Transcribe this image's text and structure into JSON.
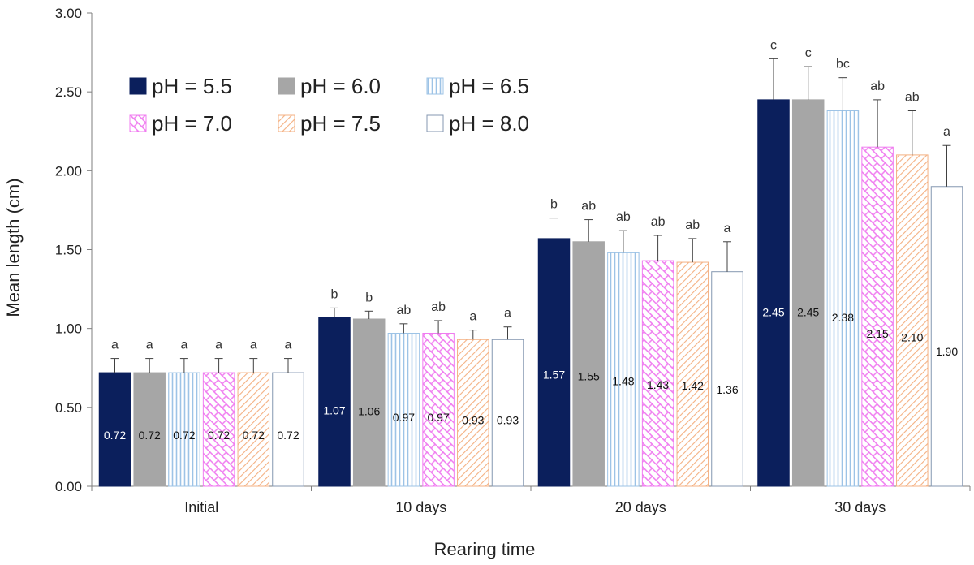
{
  "chart_data": {
    "type": "bar",
    "ylabel": "Mean length (cm)",
    "xlabel": "Rearing time",
    "ylim": [
      0,
      3.0
    ],
    "yticks": [
      "0.00",
      "0.50",
      "1.00",
      "1.50",
      "2.00",
      "2.50",
      "3.00"
    ],
    "categories": [
      "Initial",
      "10 days",
      "20 days",
      "30 days"
    ],
    "legend_placement": "top-left",
    "series": [
      {
        "name": "pH = 5.5",
        "color": "#0b1f5c",
        "pattern": "solid",
        "values": [
          0.72,
          1.07,
          1.57,
          2.45
        ],
        "value_labels": [
          "0.72",
          "1.07",
          "1.57",
          "2.45"
        ],
        "errors": [
          0.09,
          0.06,
          0.13,
          0.26
        ],
        "significance": [
          "a",
          "b",
          "b",
          "c"
        ]
      },
      {
        "name": "pH = 6.0",
        "color": "#a6a6a6",
        "pattern": "solid",
        "values": [
          0.72,
          1.06,
          1.55,
          2.45
        ],
        "value_labels": [
          "0.72",
          "1.06",
          "1.55",
          "2.45"
        ],
        "errors": [
          0.09,
          0.05,
          0.14,
          0.21
        ],
        "significance": [
          "a",
          "b",
          "ab",
          "c"
        ]
      },
      {
        "name": "pH = 6.5",
        "color": "#9dc3e6",
        "pattern": "vertical",
        "values": [
          0.72,
          0.97,
          1.48,
          2.38
        ],
        "value_labels": [
          "0.72",
          "0.97",
          "1.48",
          "2.38"
        ],
        "errors": [
          0.09,
          0.06,
          0.14,
          0.21
        ],
        "significance": [
          "a",
          "ab",
          "ab",
          "bc"
        ]
      },
      {
        "name": "pH = 7.0",
        "color": "#f07cf0",
        "pattern": "brick",
        "values": [
          0.72,
          0.97,
          1.43,
          2.15
        ],
        "value_labels": [
          "0.72",
          "0.97",
          "1.43",
          "2.15"
        ],
        "errors": [
          0.09,
          0.08,
          0.16,
          0.3
        ],
        "significance": [
          "a",
          "ab",
          "ab",
          "ab"
        ]
      },
      {
        "name": "pH = 7.5",
        "color": "#f4b183",
        "pattern": "diagonal",
        "values": [
          0.72,
          0.93,
          1.42,
          2.1
        ],
        "value_labels": [
          "0.72",
          "0.93",
          "1.42",
          "2.10"
        ],
        "errors": [
          0.09,
          0.06,
          0.15,
          0.28
        ],
        "significance": [
          "a",
          "a",
          "ab",
          "ab"
        ]
      },
      {
        "name": "pH = 8.0",
        "color": "#8497b0",
        "pattern": "open",
        "values": [
          0.72,
          0.93,
          1.36,
          1.9
        ],
        "value_labels": [
          "0.72",
          "0.93",
          "1.36",
          "1.90"
        ],
        "errors": [
          0.09,
          0.08,
          0.19,
          0.26
        ],
        "significance": [
          "a",
          "a",
          "a",
          "a"
        ]
      }
    ]
  }
}
